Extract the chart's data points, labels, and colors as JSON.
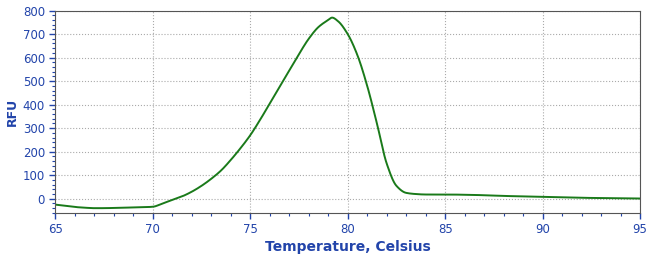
{
  "title": "",
  "xlabel": "Temperature, Celsius",
  "ylabel": "RFU",
  "xlabel_fontsize": 10,
  "ylabel_fontsize": 9,
  "line_color": "#1a7a1a",
  "line_width": 1.4,
  "xlim": [
    65,
    95
  ],
  "ylim": [
    -60,
    800
  ],
  "xticks": [
    65,
    70,
    75,
    80,
    85,
    90,
    95
  ],
  "yticks": [
    0,
    100,
    200,
    300,
    400,
    500,
    600,
    700,
    800
  ],
  "grid_color": "#aaaaaa",
  "background_color": "#ffffff",
  "tick_color": "#2244aa",
  "label_color": "#2244aa",
  "peak_temp": 79.2,
  "peak_rfu": 770,
  "curve_points_x": [
    65.0,
    65.5,
    66.0,
    66.5,
    67.0,
    67.5,
    68.0,
    68.5,
    69.0,
    69.5,
    70.0,
    70.5,
    71.0,
    71.5,
    72.0,
    72.5,
    73.0,
    73.5,
    74.0,
    74.5,
    75.0,
    75.5,
    76.0,
    76.5,
    77.0,
    77.5,
    78.0,
    78.5,
    79.0,
    79.2,
    79.5,
    80.0,
    80.5,
    81.0,
    81.5,
    82.0,
    82.5,
    83.0,
    83.5,
    84.0,
    85.0,
    86.0,
    87.0,
    88.0,
    89.0,
    90.0,
    91.0,
    92.0,
    93.0,
    94.0,
    95.0
  ],
  "curve_points_y": [
    -25,
    -30,
    -35,
    -38,
    -40,
    -40,
    -39,
    -38,
    -37,
    -36,
    -34,
    -20,
    -5,
    10,
    30,
    55,
    85,
    120,
    165,
    215,
    270,
    335,
    405,
    475,
    545,
    615,
    680,
    730,
    760,
    770,
    755,
    700,
    610,
    480,
    320,
    150,
    55,
    25,
    20,
    18,
    18,
    17,
    15,
    12,
    10,
    8,
    6,
    4,
    3,
    2,
    1
  ]
}
